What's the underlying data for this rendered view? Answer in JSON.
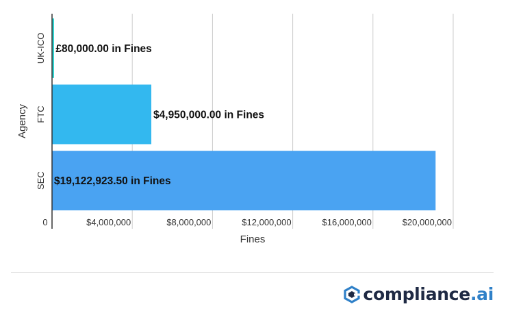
{
  "chart_data": {
    "type": "bar",
    "orientation": "horizontal",
    "categories": [
      "UK-ICO",
      "FTC",
      "SEC"
    ],
    "values": [
      80000,
      4950000,
      19122923.5
    ],
    "data_labels": [
      "£80,000.00 in Fines",
      "$4,950,000.00 in Fines",
      "$19,122,923.50 in Fines"
    ],
    "colors": [
      "#2fd4d0",
      "#33b8ef",
      "#4aa3f2"
    ],
    "xlabel": "Fines",
    "ylabel": "Agency",
    "xlim": [
      0,
      20000000
    ],
    "xticks": [
      0,
      4000000,
      8000000,
      12000000,
      16000000,
      20000000
    ],
    "xtick_labels": [
      "0",
      "$4,000,000",
      "$8,000,000",
      "$12,000,000",
      "$16,000,000",
      "$20,000,000"
    ],
    "grid": "vertical"
  },
  "brand": {
    "name_main": "compliance",
    "name_suffix": ".ai",
    "logo_icon": "compliance-ai-logo-icon",
    "primary_color": "#1f2a44",
    "accent_color": "#2f80c8"
  }
}
